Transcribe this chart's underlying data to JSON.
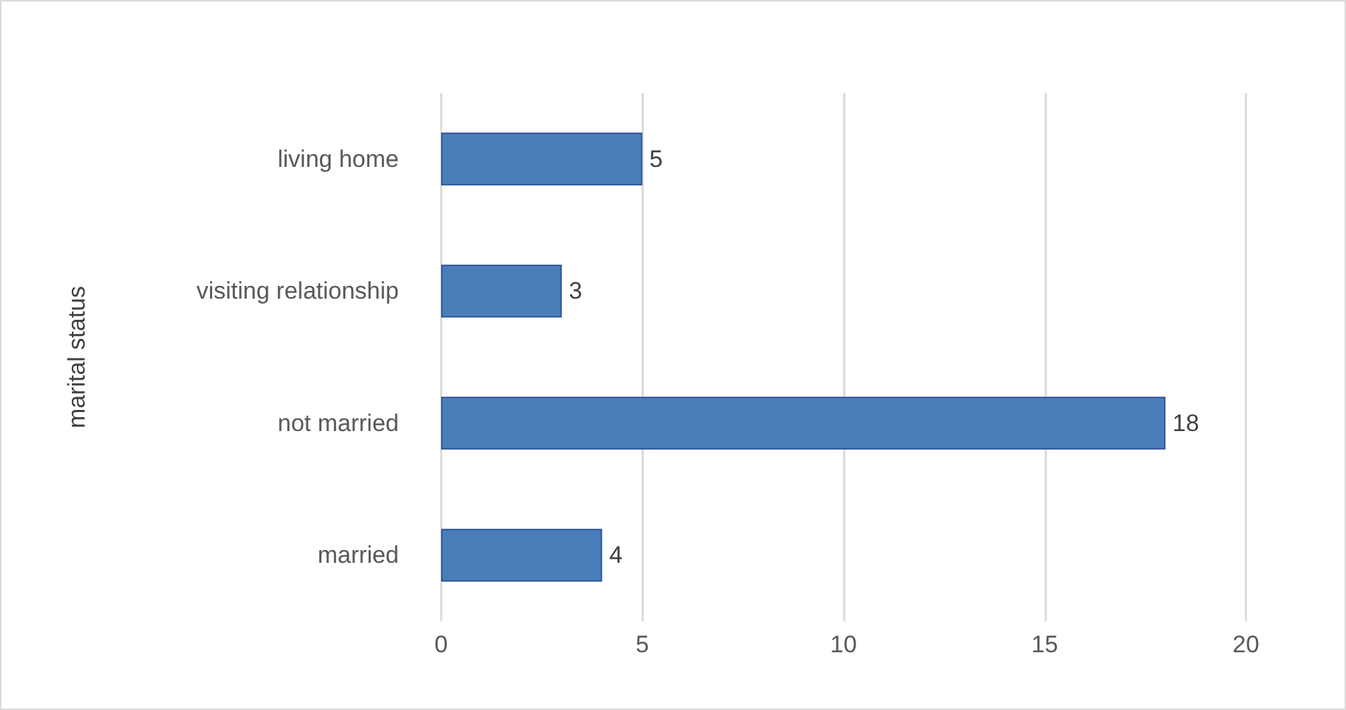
{
  "chart_data": {
    "type": "bar",
    "orientation": "horizontal",
    "ylabel": "marital status",
    "categories": [
      "living home",
      "visiting relationship",
      "not married",
      "married"
    ],
    "values": [
      5,
      3,
      18,
      4
    ],
    "color": "#4a7ebb",
    "xlim": [
      0,
      20
    ],
    "xticks": [
      0,
      5,
      10,
      15,
      20
    ],
    "grid": "x",
    "data_labels": true
  }
}
